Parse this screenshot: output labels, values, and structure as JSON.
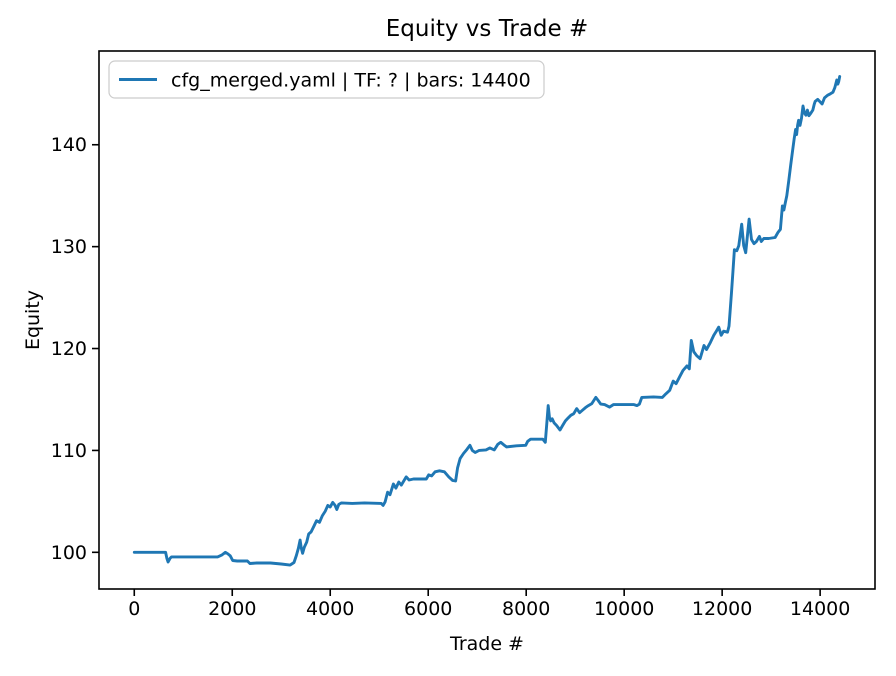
{
  "chart_data": {
    "type": "line",
    "title": "Equity vs Trade #",
    "xlabel": "Trade #",
    "ylabel": "Equity",
    "grid": false,
    "legend": {
      "position": "upper left",
      "entries": [
        "cfg_merged.yaml | TF: ? | bars: 14400"
      ]
    },
    "colors": {
      "line": "#1f77b4",
      "axis": "#000000",
      "background": "#ffffff",
      "legend_border": "#cccccc"
    },
    "xlim": [
      -720,
      15120
    ],
    "ylim": [
      96.4,
      149.2
    ],
    "xticks": [
      0,
      2000,
      4000,
      6000,
      8000,
      10000,
      12000,
      14000
    ],
    "yticks": [
      100,
      110,
      120,
      130,
      140
    ],
    "series": [
      {
        "name": "cfg_merged.yaml | TF: ? | bars: 14400",
        "points": [
          [
            0,
            100.0
          ],
          [
            640,
            100.0
          ],
          [
            665,
            99.4
          ],
          [
            690,
            99.05
          ],
          [
            730,
            99.4
          ],
          [
            760,
            99.55
          ],
          [
            1700,
            99.55
          ],
          [
            1790,
            99.75
          ],
          [
            1860,
            100.0
          ],
          [
            1910,
            99.85
          ],
          [
            1960,
            99.65
          ],
          [
            2010,
            99.2
          ],
          [
            2100,
            99.15
          ],
          [
            2310,
            99.15
          ],
          [
            2360,
            98.9
          ],
          [
            2500,
            98.95
          ],
          [
            2780,
            98.95
          ],
          [
            3000,
            98.85
          ],
          [
            3180,
            98.75
          ],
          [
            3260,
            99.0
          ],
          [
            3310,
            99.7
          ],
          [
            3350,
            100.4
          ],
          [
            3385,
            101.2
          ],
          [
            3410,
            100.4
          ],
          [
            3435,
            99.9
          ],
          [
            3470,
            100.5
          ],
          [
            3520,
            101.0
          ],
          [
            3560,
            101.8
          ],
          [
            3610,
            102.0
          ],
          [
            3670,
            102.6
          ],
          [
            3720,
            103.1
          ],
          [
            3780,
            102.95
          ],
          [
            3840,
            103.6
          ],
          [
            3900,
            104.05
          ],
          [
            3950,
            104.6
          ],
          [
            4000,
            104.45
          ],
          [
            4050,
            104.9
          ],
          [
            4100,
            104.6
          ],
          [
            4135,
            104.2
          ],
          [
            4175,
            104.7
          ],
          [
            4230,
            104.85
          ],
          [
            4450,
            104.8
          ],
          [
            4700,
            104.85
          ],
          [
            5040,
            104.8
          ],
          [
            5080,
            104.6
          ],
          [
            5120,
            104.95
          ],
          [
            5170,
            105.9
          ],
          [
            5220,
            105.65
          ],
          [
            5290,
            106.7
          ],
          [
            5340,
            106.3
          ],
          [
            5400,
            106.9
          ],
          [
            5450,
            106.6
          ],
          [
            5550,
            107.4
          ],
          [
            5610,
            107.1
          ],
          [
            5700,
            107.2
          ],
          [
            5960,
            107.2
          ],
          [
            6010,
            107.6
          ],
          [
            6070,
            107.5
          ],
          [
            6140,
            107.9
          ],
          [
            6230,
            108.0
          ],
          [
            6330,
            107.9
          ],
          [
            6420,
            107.4
          ],
          [
            6500,
            107.05
          ],
          [
            6560,
            107.0
          ],
          [
            6600,
            108.3
          ],
          [
            6650,
            109.2
          ],
          [
            6720,
            109.7
          ],
          [
            6790,
            110.1
          ],
          [
            6850,
            110.5
          ],
          [
            6900,
            110.0
          ],
          [
            6960,
            109.8
          ],
          [
            7040,
            110.0
          ],
          [
            7180,
            110.05
          ],
          [
            7260,
            110.25
          ],
          [
            7350,
            110.05
          ],
          [
            7420,
            110.6
          ],
          [
            7480,
            110.8
          ],
          [
            7540,
            110.55
          ],
          [
            7600,
            110.35
          ],
          [
            7800,
            110.45
          ],
          [
            7990,
            110.5
          ],
          [
            8030,
            110.9
          ],
          [
            8090,
            111.1
          ],
          [
            8340,
            111.1
          ],
          [
            8390,
            110.8
          ],
          [
            8425,
            112.9
          ],
          [
            8450,
            114.4
          ],
          [
            8475,
            113.2
          ],
          [
            8500,
            112.9
          ],
          [
            8530,
            113.1
          ],
          [
            8570,
            112.7
          ],
          [
            8620,
            112.45
          ],
          [
            8690,
            112.0
          ],
          [
            8750,
            112.5
          ],
          [
            8800,
            112.9
          ],
          [
            8860,
            113.2
          ],
          [
            8910,
            113.45
          ],
          [
            8970,
            113.6
          ],
          [
            9030,
            114.1
          ],
          [
            9090,
            113.7
          ],
          [
            9150,
            113.95
          ],
          [
            9210,
            114.2
          ],
          [
            9270,
            114.4
          ],
          [
            9340,
            114.6
          ],
          [
            9420,
            115.2
          ],
          [
            9470,
            114.9
          ],
          [
            9520,
            114.55
          ],
          [
            9600,
            114.5
          ],
          [
            9700,
            114.25
          ],
          [
            9780,
            114.5
          ],
          [
            10200,
            114.5
          ],
          [
            10260,
            114.4
          ],
          [
            10310,
            114.55
          ],
          [
            10360,
            115.2
          ],
          [
            10600,
            115.25
          ],
          [
            10780,
            115.2
          ],
          [
            10850,
            115.55
          ],
          [
            10930,
            115.9
          ],
          [
            11000,
            116.8
          ],
          [
            11060,
            116.55
          ],
          [
            11130,
            117.2
          ],
          [
            11200,
            117.85
          ],
          [
            11280,
            118.3
          ],
          [
            11330,
            118.0
          ],
          [
            11370,
            120.8
          ],
          [
            11420,
            119.7
          ],
          [
            11480,
            119.3
          ],
          [
            11550,
            119.0
          ],
          [
            11630,
            120.3
          ],
          [
            11680,
            119.9
          ],
          [
            11760,
            120.6
          ],
          [
            11830,
            121.3
          ],
          [
            11880,
            121.7
          ],
          [
            11930,
            122.1
          ],
          [
            11980,
            121.3
          ],
          [
            12030,
            121.7
          ],
          [
            12110,
            121.6
          ],
          [
            12140,
            122.2
          ],
          [
            12160,
            123.5
          ],
          [
            12190,
            125.5
          ],
          [
            12220,
            127.5
          ],
          [
            12250,
            129.7
          ],
          [
            12300,
            129.6
          ],
          [
            12340,
            130.1
          ],
          [
            12400,
            132.2
          ],
          [
            12440,
            130.1
          ],
          [
            12480,
            129.4
          ],
          [
            12550,
            132.7
          ],
          [
            12600,
            130.7
          ],
          [
            12650,
            130.3
          ],
          [
            12700,
            130.5
          ],
          [
            12760,
            131.0
          ],
          [
            12800,
            130.5
          ],
          [
            12850,
            130.8
          ],
          [
            12950,
            130.8
          ],
          [
            13080,
            130.9
          ],
          [
            13140,
            131.4
          ],
          [
            13190,
            131.7
          ],
          [
            13230,
            134.0
          ],
          [
            13260,
            133.6
          ],
          [
            13290,
            134.3
          ],
          [
            13320,
            135.0
          ],
          [
            13360,
            136.5
          ],
          [
            13400,
            138.0
          ],
          [
            13440,
            139.5
          ],
          [
            13470,
            140.6
          ],
          [
            13500,
            141.5
          ],
          [
            13520,
            141.0
          ],
          [
            13540,
            141.9
          ],
          [
            13560,
            142.4
          ],
          [
            13590,
            141.9
          ],
          [
            13620,
            142.6
          ],
          [
            13650,
            143.8
          ],
          [
            13680,
            143.1
          ],
          [
            13710,
            142.9
          ],
          [
            13740,
            143.4
          ],
          [
            13770,
            142.85
          ],
          [
            13810,
            143.1
          ],
          [
            13850,
            143.4
          ],
          [
            13880,
            144.0
          ],
          [
            13900,
            144.25
          ],
          [
            13950,
            144.45
          ],
          [
            14000,
            144.2
          ],
          [
            14040,
            144.0
          ],
          [
            14090,
            144.6
          ],
          [
            14150,
            144.85
          ],
          [
            14210,
            145.0
          ],
          [
            14260,
            145.15
          ],
          [
            14300,
            145.6
          ],
          [
            14340,
            146.35
          ],
          [
            14360,
            145.95
          ],
          [
            14380,
            146.2
          ],
          [
            14400,
            146.7
          ]
        ]
      }
    ]
  }
}
